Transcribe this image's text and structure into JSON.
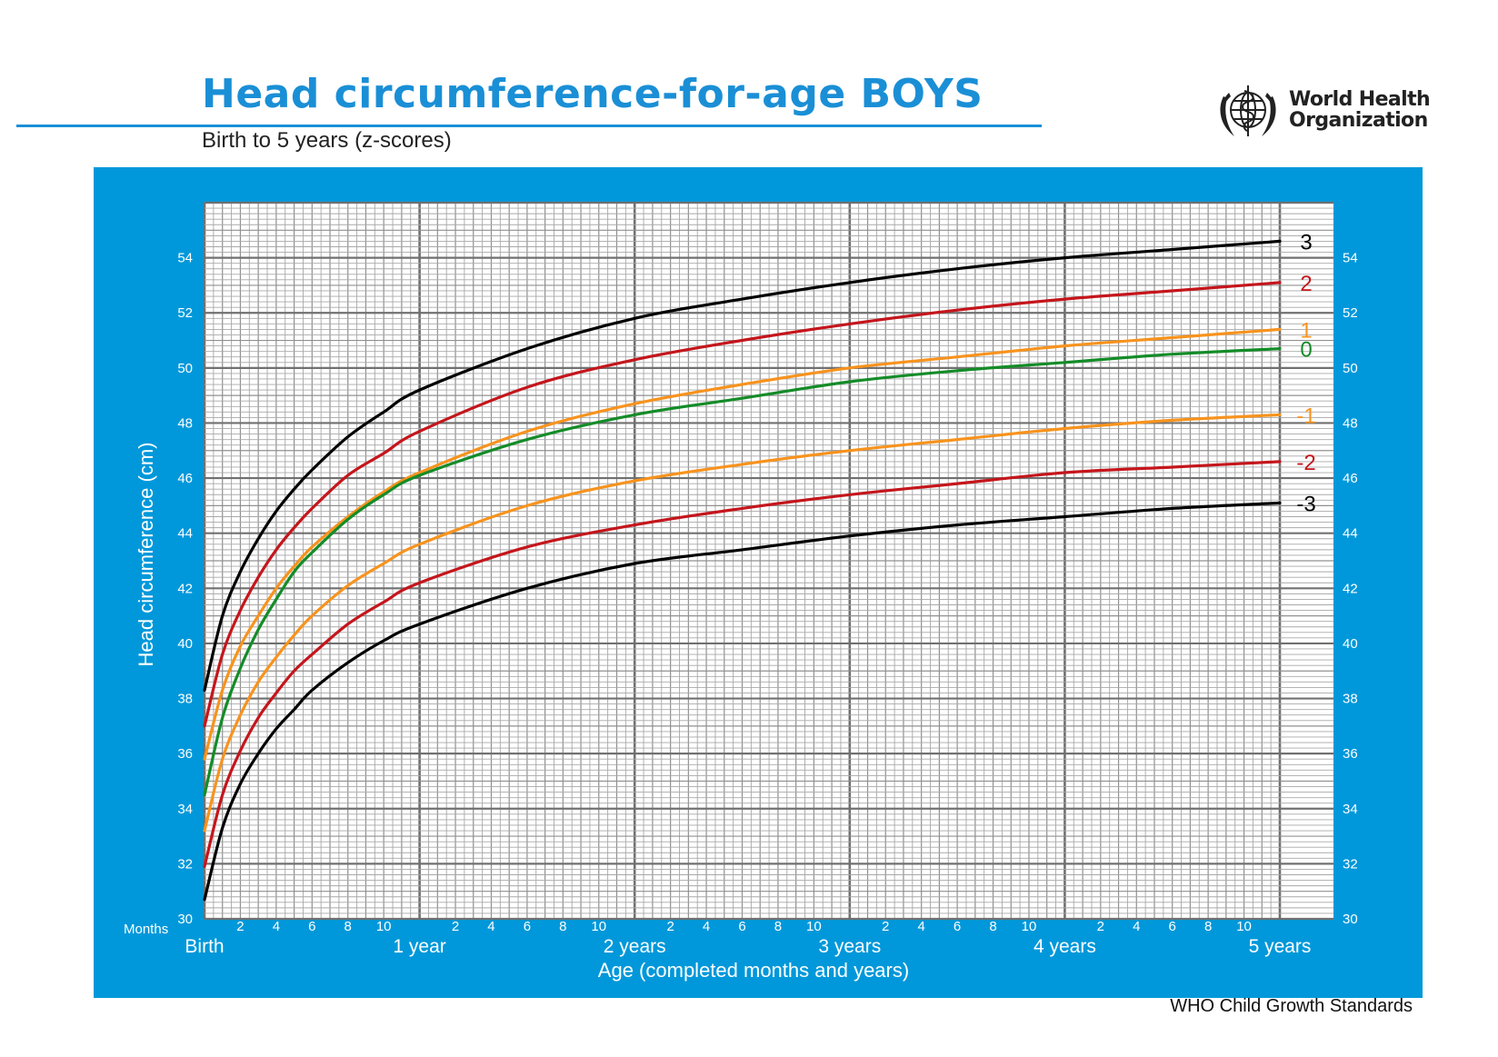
{
  "header": {
    "title": "Head circumference-for-age  BOYS",
    "subtitle": "Birth to 5 years (z-scores)",
    "org_line1": "World Health",
    "org_line2": "Organization",
    "logo_icon": "who-emblem-icon",
    "footer": "WHO Child Growth Standards"
  },
  "colors": {
    "frame": "#0098da",
    "z3": "#000000",
    "z2": "#c4161c",
    "z1": "#f7931e",
    "z0": "#148c28"
  },
  "chart_data": {
    "type": "line",
    "ylabel": "Head circumference (cm)",
    "xlabel": "Age (completed months and years)",
    "months_label": "Months",
    "x_unit": "months",
    "xlim": [
      0,
      60
    ],
    "ylim": [
      30,
      56
    ],
    "y_ticks": [
      30,
      32,
      34,
      36,
      38,
      40,
      42,
      44,
      46,
      48,
      50,
      52,
      54
    ],
    "x_minor_ticks": [
      2,
      4,
      6,
      8,
      10,
      14,
      16,
      18,
      20,
      22,
      26,
      28,
      30,
      32,
      34,
      38,
      40,
      42,
      44,
      46,
      50,
      52,
      54,
      56,
      58
    ],
    "x_minor_labels": [
      "2",
      "4",
      "6",
      "8",
      "10",
      "2",
      "4",
      "6",
      "8",
      "10",
      "2",
      "4",
      "6",
      "8",
      "10",
      "2",
      "4",
      "6",
      "8",
      "10",
      "2",
      "4",
      "6",
      "8",
      "10"
    ],
    "x_major_ticks": [
      0,
      12,
      24,
      36,
      48,
      60
    ],
    "x_major_labels": [
      "Birth",
      "1 year",
      "2 years",
      "3 years",
      "4 years",
      "5 years"
    ],
    "x": [
      0,
      1,
      2,
      3,
      4,
      5,
      6,
      8,
      10,
      12,
      18,
      24,
      30,
      36,
      42,
      48,
      54,
      60
    ],
    "series": [
      {
        "name": "3",
        "color_key": "z3",
        "values": [
          38.3,
          41.0,
          42.6,
          43.8,
          44.8,
          45.6,
          46.3,
          47.5,
          48.4,
          49.2,
          50.7,
          51.8,
          52.5,
          53.1,
          53.6,
          54.0,
          54.3,
          54.6
        ]
      },
      {
        "name": "2",
        "color_key": "z2",
        "values": [
          37.0,
          39.6,
          41.2,
          42.4,
          43.4,
          44.2,
          44.9,
          46.1,
          46.9,
          47.7,
          49.3,
          50.3,
          51.0,
          51.6,
          52.1,
          52.5,
          52.8,
          53.1
        ]
      },
      {
        "name": "1",
        "color_key": "z1",
        "values": [
          35.8,
          38.3,
          39.9,
          41.0,
          42.0,
          42.8,
          43.5,
          44.6,
          45.5,
          46.2,
          47.7,
          48.7,
          49.4,
          50.0,
          50.4,
          50.8,
          51.1,
          51.4
        ]
      },
      {
        "name": "0",
        "color_key": "z0",
        "values": [
          34.5,
          37.3,
          39.1,
          40.5,
          41.6,
          42.6,
          43.3,
          44.5,
          45.4,
          46.1,
          47.4,
          48.3,
          48.9,
          49.5,
          49.9,
          50.2,
          50.5,
          50.7
        ]
      },
      {
        "name": "-1",
        "color_key": "z1",
        "values": [
          33.2,
          35.8,
          37.4,
          38.6,
          39.5,
          40.3,
          41.0,
          42.1,
          42.9,
          43.6,
          45.0,
          45.9,
          46.5,
          47.0,
          47.4,
          47.8,
          48.1,
          48.3
        ]
      },
      {
        "name": "-2",
        "color_key": "z2",
        "values": [
          31.9,
          34.5,
          36.1,
          37.3,
          38.2,
          39.0,
          39.6,
          40.7,
          41.5,
          42.2,
          43.5,
          44.3,
          44.9,
          45.4,
          45.8,
          46.2,
          46.4,
          46.6
        ]
      },
      {
        "name": "-3",
        "color_key": "z3",
        "values": [
          30.7,
          33.3,
          34.9,
          36.0,
          36.9,
          37.6,
          38.3,
          39.3,
          40.1,
          40.7,
          42.0,
          42.9,
          43.4,
          43.9,
          44.3,
          44.6,
          44.9,
          45.1
        ]
      }
    ]
  }
}
